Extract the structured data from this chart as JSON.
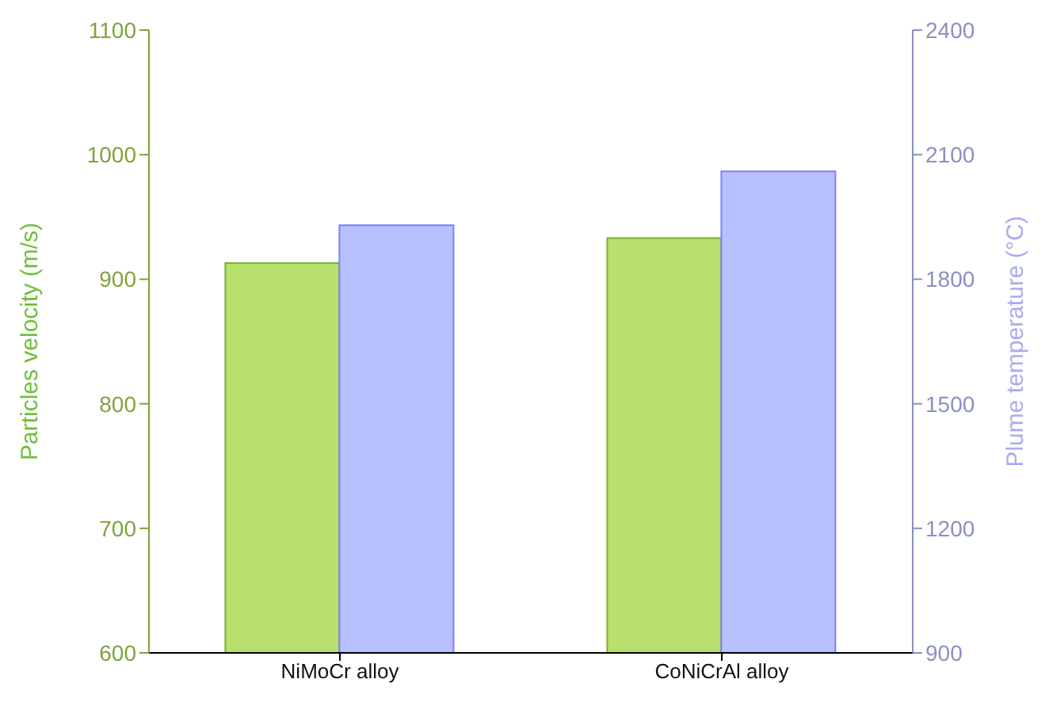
{
  "chart_data": {
    "type": "bar",
    "xlabel": null,
    "ylabel": "Particles velocity (m/s)",
    "y2label": "Plume temperature (°C)",
    "categories": [
      "NiMoCr alloy",
      "CoNiCrAl alloy"
    ],
    "series": [
      {
        "color": "#b8e06c",
        "values": [
          913,
          933
        ]
      },
      {
        "color": "#b8c0ff",
        "values": [
          1930,
          2060
        ],
        "axis": "y2"
      }
    ],
    "ylim": [
      600,
      1100
    ],
    "yticks": [
      600,
      700,
      800,
      900,
      1000,
      1100
    ],
    "y2lim": [
      900,
      2400
    ],
    "y2ticks": [
      900,
      1200,
      1500,
      1800,
      2100,
      2400
    ],
    "grid": false
  }
}
